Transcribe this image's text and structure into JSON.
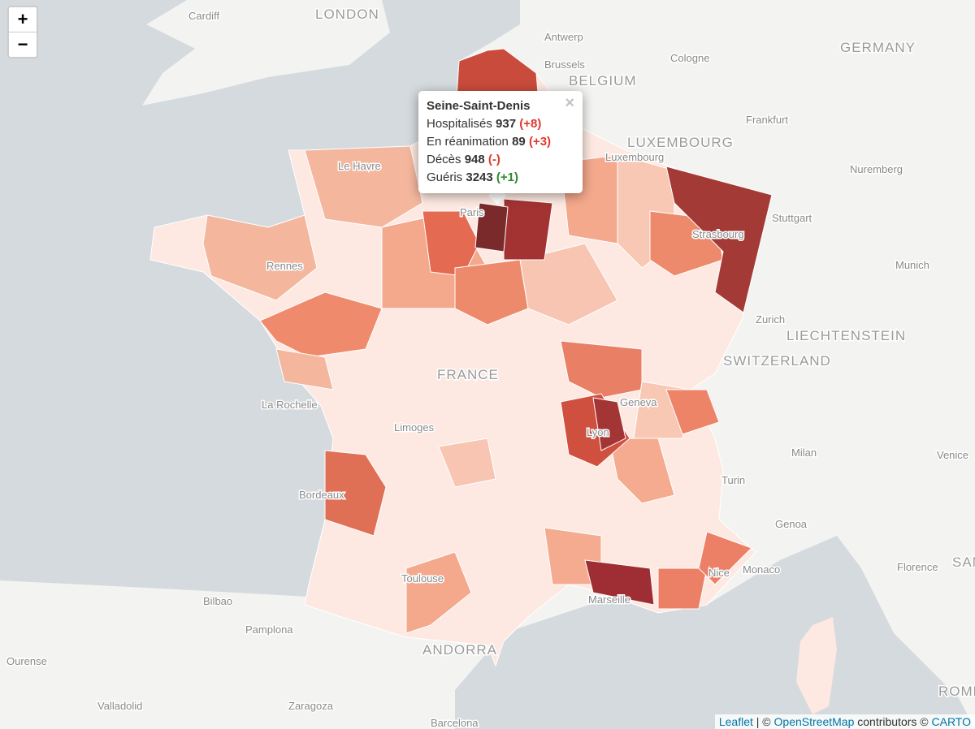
{
  "zoom": {
    "in": "+",
    "out": "−"
  },
  "labels": {
    "cardiff": "Cardiff",
    "london": "LONDON",
    "antwerp": "Antwerp",
    "brussels": "Brussels",
    "belgium": "BELGIUM",
    "cologne": "Cologne",
    "germany": "GERMANY",
    "luxembourg_country": "LUXEMBOURG",
    "frankfurt": "Frankfurt",
    "luxembourg_city": "Luxembourg",
    "nuremberg": "Nuremberg",
    "le_havre": "Le Havre",
    "stuttgart": "Stuttgart",
    "strasbourg": "Strasbourg",
    "rennes": "Rennes",
    "paris": "Paris",
    "munich": "Munich",
    "zurich": "Zurich",
    "liechtenstein": "LIECHTENSTEIN",
    "switzerland": "SWITZERLAND",
    "france": "FRANCE",
    "la_rochelle": "La Rochelle",
    "limoges": "Limoges",
    "geneva": "Geneva",
    "lyon": "Lyon",
    "milan": "Milan",
    "venice": "Venice",
    "turin": "Turin",
    "bordeaux": "Bordeaux",
    "genoa": "Genoa",
    "florence": "Florence",
    "monaco": "Monaco",
    "nice": "Nice",
    "toulouse": "Toulouse",
    "marseille": "Marseille",
    "bilbao": "Bilbao",
    "pamplona": "Pamplona",
    "andorra": "ANDORRA",
    "ourense": "Ourense",
    "valladolid": "Valladolid",
    "zaragoza": "Zaragoza",
    "barcelona": "Barcelona",
    "rome": "ROME",
    "san_marino": "SAN MA"
  },
  "popup": {
    "title": "Seine-Saint-Denis",
    "close": "×",
    "rows": [
      {
        "label": "Hospitalisés",
        "value": 937,
        "change": "(+8)"
      },
      {
        "label": "En réanimation",
        "value": 89,
        "change": "(+3)"
      },
      {
        "label": "Décès",
        "value": 948,
        "change": "(-)"
      },
      {
        "label": "Guéris",
        "value": 3243,
        "change": "(+1)"
      }
    ]
  },
  "attribution": {
    "leaflet": "Leaflet",
    "sep": "| ©",
    "osm": "OpenStreetMap",
    "contrib": "contributors ©",
    "carto": "CARTO"
  }
}
